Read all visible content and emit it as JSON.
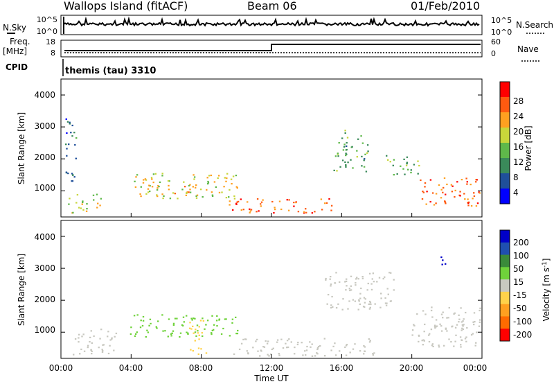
{
  "header": {
    "station": "Wallops Island (fitACF)",
    "beam": "Beam 06",
    "date": "01/Feb/2010"
  },
  "panels": {
    "nsky": {
      "left_label": "N.Sky",
      "ticks": [
        "10^5",
        "10^0"
      ],
      "right_label": "N.Search",
      "right_ticks": [
        "10^5",
        "10^0"
      ]
    },
    "freq": {
      "left_label_1": "Freq.",
      "left_label_2": "[MHz]",
      "ticks": [
        "18",
        "8"
      ],
      "right_label": "Nave",
      "right_ticks": [
        "60",
        "0"
      ]
    },
    "cpid": {
      "left_label": "CPID",
      "text": "themis (tau) 3310"
    }
  },
  "x_axis": {
    "label": "Time UT",
    "ticks": [
      "00:00",
      "04:00",
      "08:00",
      "12:00",
      "16:00",
      "20:00",
      "00:00"
    ]
  },
  "colors": {
    "power": [
      "#0000ff",
      "#1f4f9a",
      "#3a8a5a",
      "#5fb84a",
      "#c8d63a",
      "#ffa020",
      "#ff5a10",
      "#ff0000"
    ],
    "velocity": [
      "#ff0000",
      "#ff6a00",
      "#ffa020",
      "#ffd24a",
      "#c8c8c0",
      "#6fd23a",
      "#3a8a3a",
      "#1f4fb0",
      "#0000c8"
    ]
  },
  "chart_data": [
    {
      "type": "heatmap",
      "title": "",
      "xlabel": "",
      "ylabel": "Slant Range [km]",
      "ylim": [
        180,
        4500
      ],
      "y_ticks": [
        "1000",
        "2000",
        "3000",
        "4000"
      ],
      "colorbar": {
        "label": "Power [dB]",
        "ticks": [
          "28",
          "24",
          "20",
          "16",
          "12",
          "8",
          "4"
        ],
        "range": [
          0,
          32
        ]
      },
      "regions": [
        {
          "t": [
            0.0,
            0.7
          ],
          "r": [
            1300,
            3300
          ],
          "v": 8
        },
        {
          "t": [
            0.2,
            2.2
          ],
          "r": [
            300,
            900
          ],
          "v": 18
        },
        {
          "t": [
            4.0,
            10.0
          ],
          "r": [
            750,
            1550
          ],
          "v": 18
        },
        {
          "t": [
            6.0,
            8.0
          ],
          "r": [
            900,
            1200
          ],
          "v": 22
        },
        {
          "t": [
            9.5,
            15.5
          ],
          "r": [
            300,
            750
          ],
          "v": 26
        },
        {
          "t": [
            15.5,
            17.5
          ],
          "r": [
            1600,
            2900
          ],
          "v": 12
        },
        {
          "t": [
            18.5,
            20.5
          ],
          "r": [
            1500,
            2100
          ],
          "v": 14
        },
        {
          "t": [
            20.5,
            24.0
          ],
          "r": [
            500,
            1400
          ],
          "v": 25
        }
      ]
    },
    {
      "type": "heatmap",
      "title": "",
      "xlabel": "",
      "ylabel": "Slant Range [km]",
      "ylim": [
        180,
        4500
      ],
      "y_ticks": [
        "1000",
        "2000",
        "3000",
        "4000"
      ],
      "colorbar": {
        "label": "Velocity [m s^-1]",
        "ticks": [
          "200",
          "100",
          "50",
          "15",
          "-15",
          "-50",
          "-100",
          "-200"
        ],
        "range": [
          -250,
          250
        ]
      },
      "regions": [
        {
          "t": [
            0.3,
            3.0
          ],
          "r": [
            300,
            1100
          ],
          "v": 0
        },
        {
          "t": [
            3.8,
            10.0
          ],
          "r": [
            850,
            1550
          ],
          "v": 35
        },
        {
          "t": [
            7.2,
            8.2
          ],
          "r": [
            300,
            1400
          ],
          "v": -30
        },
        {
          "t": [
            9.5,
            18.0
          ],
          "r": [
            250,
            800
          ],
          "v": 0
        },
        {
          "t": [
            15.0,
            19.0
          ],
          "r": [
            1700,
            2900
          ],
          "v": 0
        },
        {
          "t": [
            20.0,
            24.0
          ],
          "r": [
            500,
            1800
          ],
          "v": 0
        },
        {
          "t": [
            21.6,
            22.3
          ],
          "r": [
            3100,
            3400
          ],
          "v": 220
        }
      ]
    }
  ]
}
